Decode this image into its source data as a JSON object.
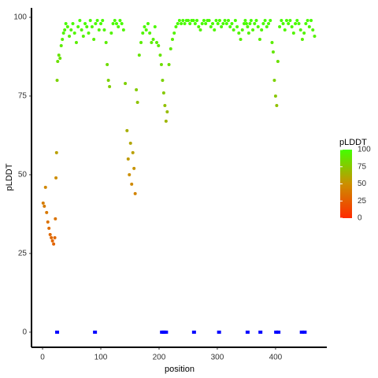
{
  "chart_data": {
    "type": "scatter",
    "x_label": "position",
    "y_label": "pLDDT",
    "xlim": [
      -19,
      488
    ],
    "ylim": [
      -4.8,
      103
    ],
    "xticks": [
      0,
      100,
      200,
      300,
      400
    ],
    "yticks": [
      0,
      25,
      50,
      75,
      100
    ],
    "grid": false,
    "colorscale": [
      [
        0,
        "#ff2a00"
      ],
      [
        50,
        "#cc8f00"
      ],
      [
        100,
        "#44ff00"
      ]
    ],
    "colorbar": {
      "title": "pLDDT",
      "lim": [
        0,
        100
      ],
      "ticks": [
        0,
        25,
        50,
        75,
        100
      ]
    },
    "series": [
      {
        "color_by": "value",
        "marker": "circle",
        "x": [
          1,
          3,
          5,
          7,
          9,
          11,
          13,
          15,
          17,
          19,
          21,
          22,
          23,
          24,
          25,
          26,
          28,
          30,
          32,
          34,
          36,
          38,
          40,
          43,
          46,
          49,
          52,
          55,
          58,
          61,
          64,
          67,
          70,
          73,
          76,
          79,
          82,
          85,
          88,
          91,
          94,
          97,
          100,
          103,
          106,
          109,
          111,
          113,
          115,
          118,
          121,
          124,
          127,
          130,
          133,
          136,
          139,
          142,
          145,
          147,
          149,
          151,
          153,
          155,
          157,
          159,
          161,
          163,
          166,
          169,
          172,
          175,
          178,
          181,
          184,
          187,
          190,
          193,
          196,
          199,
          202,
          204,
          206,
          208,
          210,
          212,
          214,
          217,
          220,
          223,
          226,
          229,
          232,
          235,
          238,
          241,
          244,
          247,
          250,
          253,
          256,
          259,
          262,
          265,
          268,
          271,
          274,
          277,
          280,
          283,
          286,
          289,
          292,
          295,
          298,
          301,
          304,
          307,
          310,
          313,
          316,
          319,
          322,
          325,
          328,
          331,
          334,
          337,
          340,
          343,
          346,
          348,
          350,
          352,
          354,
          356,
          358,
          361,
          364,
          367,
          370,
          373,
          376,
          379,
          382,
          385,
          388,
          391,
          394,
          396,
          398,
          400,
          402,
          404,
          407,
          410,
          413,
          416,
          419,
          422,
          425,
          428,
          431,
          434,
          437,
          440,
          443,
          446,
          449,
          452,
          455,
          458,
          461,
          464,
          467
        ],
        "values": [
          41,
          40,
          46,
          38,
          35,
          33,
          31,
          30,
          29,
          28,
          30,
          36,
          49,
          57,
          80,
          86,
          88,
          87,
          91,
          93,
          95,
          96,
          98,
          97,
          94,
          96,
          98,
          95,
          92,
          97,
          99,
          96,
          94,
          98,
          97,
          95,
          99,
          97,
          93,
          98,
          99,
          96,
          98,
          99,
          96,
          92,
          85,
          80,
          78,
          95,
          98,
          99,
          98,
          97,
          99,
          98,
          96,
          79,
          64,
          55,
          50,
          60,
          47,
          57,
          52,
          44,
          77,
          73,
          88,
          92,
          95,
          97,
          96,
          98,
          95,
          92,
          93,
          97,
          92,
          91,
          88,
          85,
          80,
          76,
          72,
          67,
          70,
          85,
          90,
          93,
          95,
          97,
          98,
          99,
          98,
          99,
          98,
          99,
          99,
          98,
          99,
          99,
          98,
          99,
          97,
          96,
          98,
          99,
          98,
          99,
          99,
          97,
          98,
          96,
          99,
          98,
          99,
          97,
          98,
          99,
          98,
          99,
          97,
          98,
          96,
          99,
          97,
          95,
          93,
          96,
          98,
          99,
          98,
          97,
          95,
          98,
          99,
          96,
          98,
          99,
          97,
          93,
          96,
          98,
          99,
          97,
          98,
          99,
          92,
          89,
          80,
          75,
          72,
          86,
          97,
          99,
          98,
          96,
          99,
          98,
          99,
          97,
          95,
          98,
          99,
          98,
          96,
          93,
          95,
          98,
          99,
          97,
          99,
          96,
          94
        ]
      },
      {
        "color": "#0000ff",
        "marker": "square",
        "x": [
          25,
          90,
          205,
          208,
          212,
          260,
          303,
          352,
          374,
          401,
          405,
          445,
          450
        ],
        "values": [
          0,
          0,
          0,
          0,
          0,
          0,
          0,
          0,
          0,
          0,
          0,
          0,
          0
        ]
      }
    ]
  }
}
